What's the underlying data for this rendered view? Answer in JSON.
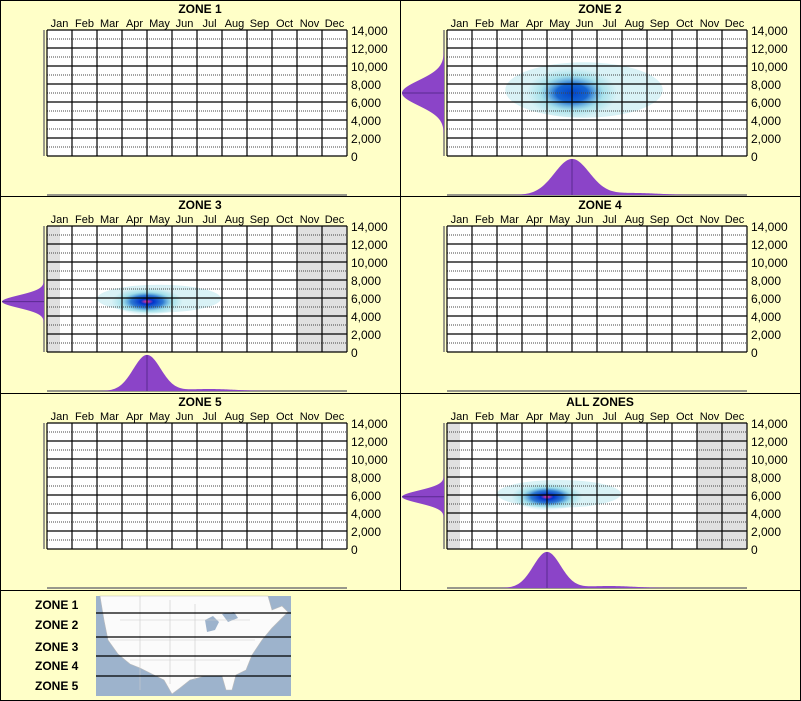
{
  "colors": {
    "background": "#ffffc8",
    "density_fill": "#8b44c8",
    "heat_core": "#ff3399",
    "heat_mid": "#0033cc",
    "heat_outer": "#66ccdd",
    "no_data": "#e0e0e0"
  },
  "chart_data": [
    {
      "type": "heatmap",
      "title": "ZONE 1",
      "x_categories": [
        "Jan",
        "Feb",
        "Mar",
        "Apr",
        "May",
        "Jun",
        "Jul",
        "Aug",
        "Sep",
        "Oct",
        "Nov",
        "Dec"
      ],
      "y_ticks": [
        "14,000",
        "12,000",
        "10,000",
        "8,000",
        "6,000",
        "4,000",
        "2,000",
        "0"
      ],
      "ylim": [
        0,
        14000
      ],
      "grid": true,
      "peaks": [],
      "no_data_months": []
    },
    {
      "type": "heatmap",
      "title": "ZONE 2",
      "x_categories": [
        "Jan",
        "Feb",
        "Mar",
        "Apr",
        "May",
        "Jun",
        "Jul",
        "Aug",
        "Sep",
        "Oct",
        "Nov",
        "Dec"
      ],
      "y_ticks": [
        "14,000",
        "12,000",
        "10,000",
        "8,000",
        "6,000",
        "4,000",
        "2,000",
        "0"
      ],
      "ylim": [
        0,
        14000
      ],
      "grid": true,
      "peaks": [
        {
          "month": 5.0,
          "elevation": 7000,
          "month_spread": 0.7,
          "elev_spread": 1400,
          "intensity": 0.75
        }
      ],
      "no_data_months": []
    },
    {
      "type": "heatmap",
      "title": "ZONE 3",
      "x_categories": [
        "Jan",
        "Feb",
        "Mar",
        "Apr",
        "May",
        "Jun",
        "Jul",
        "Aug",
        "Sep",
        "Oct",
        "Nov",
        "Dec"
      ],
      "y_ticks": [
        "14,000",
        "12,000",
        "10,000",
        "8,000",
        "6,000",
        "4,000",
        "2,000",
        "0"
      ],
      "ylim": [
        0,
        14000
      ],
      "grid": true,
      "peaks": [
        {
          "month": 4.0,
          "elevation": 5600,
          "month_spread": 0.55,
          "elev_spread": 700,
          "intensity": 1.0
        }
      ],
      "no_data_months": [
        "Jan-partial",
        "Nov",
        "Dec"
      ]
    },
    {
      "type": "heatmap",
      "title": "ZONE 4",
      "x_categories": [
        "Jan",
        "Feb",
        "Mar",
        "Apr",
        "May",
        "Jun",
        "Jul",
        "Aug",
        "Sep",
        "Oct",
        "Nov",
        "Dec"
      ],
      "y_ticks": [
        "14,000",
        "12,000",
        "10,000",
        "8,000",
        "6,000",
        "4,000",
        "2,000",
        "0"
      ],
      "ylim": [
        0,
        14000
      ],
      "grid": true,
      "peaks": [],
      "no_data_months": []
    },
    {
      "type": "heatmap",
      "title": "ZONE 5",
      "x_categories": [
        "Jan",
        "Feb",
        "Mar",
        "Apr",
        "May",
        "Jun",
        "Jul",
        "Aug",
        "Sep",
        "Oct",
        "Nov",
        "Dec"
      ],
      "y_ticks": [
        "14,000",
        "12,000",
        "10,000",
        "8,000",
        "6,000",
        "4,000",
        "2,000",
        "0"
      ],
      "ylim": [
        0,
        14000
      ],
      "grid": true,
      "peaks": [],
      "no_data_months": []
    },
    {
      "type": "heatmap",
      "title": "ALL ZONES",
      "x_categories": [
        "Jan",
        "Feb",
        "Mar",
        "Apr",
        "May",
        "Jun",
        "Jul",
        "Aug",
        "Sep",
        "Oct",
        "Nov",
        "Dec"
      ],
      "y_ticks": [
        "14,000",
        "12,000",
        "10,000",
        "8,000",
        "6,000",
        "4,000",
        "2,000",
        "0"
      ],
      "ylim": [
        0,
        14000
      ],
      "grid": true,
      "peaks": [
        {
          "month": 4.0,
          "elevation": 5800,
          "month_spread": 0.55,
          "elev_spread": 700,
          "intensity": 1.0
        }
      ],
      "no_data_months": [
        "Jan-partial",
        "Nov",
        "Dec"
      ]
    }
  ],
  "legend": {
    "zones": [
      "ZONE 1",
      "ZONE 2",
      "ZONE 3",
      "ZONE 4",
      "ZONE 5"
    ]
  }
}
